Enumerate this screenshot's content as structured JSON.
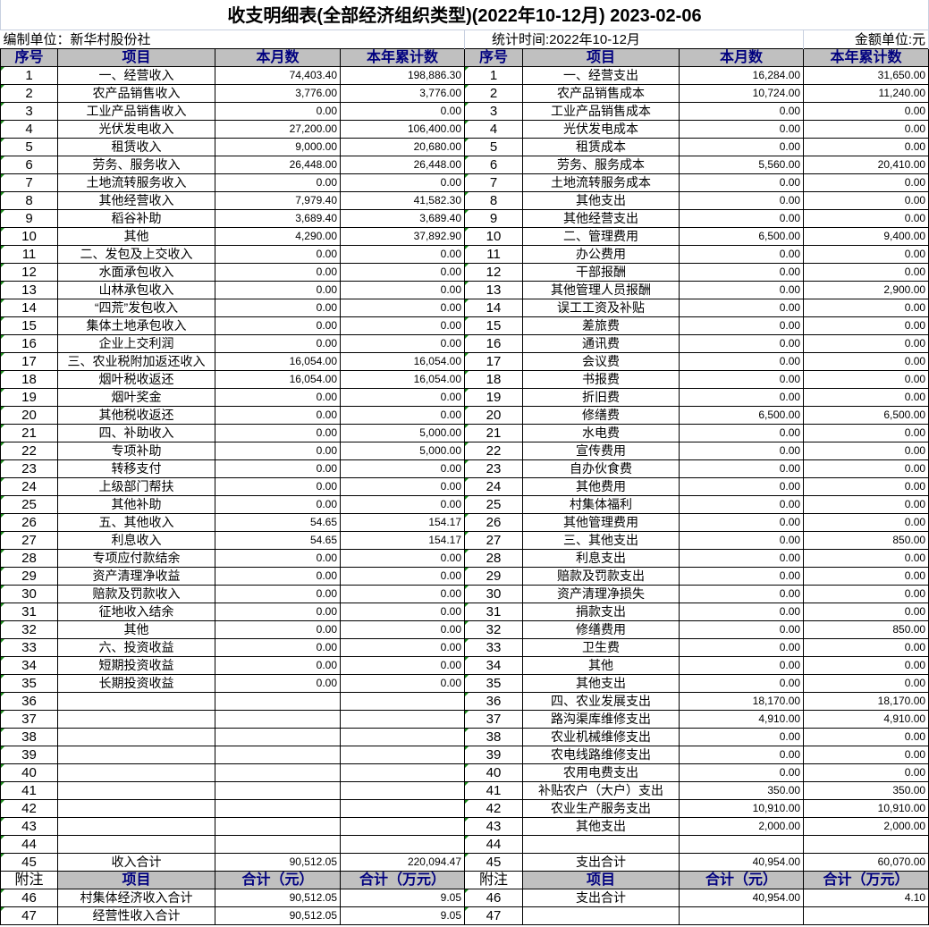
{
  "title": "收支明细表(全部经济组织类型)(2022年10-12月) 2023-02-06",
  "info": {
    "unit": "编制单位：新华村股份社",
    "period": "统计时间:2022年10-12月",
    "currency": "金额单位:元"
  },
  "header": {
    "seq": "序号",
    "item": "项目",
    "month": "本月数",
    "year": "本年累计数"
  },
  "left_rows": [
    [
      "1",
      "一、经营收入",
      "74,403.40",
      "198,886.30"
    ],
    [
      "2",
      "农产品销售收入",
      "3,776.00",
      "3,776.00"
    ],
    [
      "3",
      "工业产品销售收入",
      "0.00",
      "0.00"
    ],
    [
      "4",
      "光伏发电收入",
      "27,200.00",
      "106,400.00"
    ],
    [
      "5",
      "租赁收入",
      "9,000.00",
      "20,680.00"
    ],
    [
      "6",
      "劳务、服务收入",
      "26,448.00",
      "26,448.00"
    ],
    [
      "7",
      "土地流转服务收入",
      "0.00",
      "0.00"
    ],
    [
      "8",
      "其他经营收入",
      "7,979.40",
      "41,582.30"
    ],
    [
      "9",
      "稻谷补助",
      "3,689.40",
      "3,689.40"
    ],
    [
      "10",
      "其他",
      "4,290.00",
      "37,892.90"
    ],
    [
      "11",
      "二、发包及上交收入",
      "0.00",
      "0.00"
    ],
    [
      "12",
      "水面承包收入",
      "0.00",
      "0.00"
    ],
    [
      "13",
      "山林承包收入",
      "0.00",
      "0.00"
    ],
    [
      "14",
      "“四荒”发包收入",
      "0.00",
      "0.00"
    ],
    [
      "15",
      "集体土地承包收入",
      "0.00",
      "0.00"
    ],
    [
      "16",
      "企业上交利润",
      "0.00",
      "0.00"
    ],
    [
      "17",
      "三、农业税附加返还收入",
      "16,054.00",
      "16,054.00"
    ],
    [
      "18",
      "烟叶税收返还",
      "16,054.00",
      "16,054.00"
    ],
    [
      "19",
      "烟叶奖金",
      "0.00",
      "0.00"
    ],
    [
      "20",
      "其他税收返还",
      "0.00",
      "0.00"
    ],
    [
      "21",
      "四、补助收入",
      "0.00",
      "5,000.00"
    ],
    [
      "22",
      "专项补助",
      "0.00",
      "5,000.00"
    ],
    [
      "23",
      "转移支付",
      "0.00",
      "0.00"
    ],
    [
      "24",
      "上级部门帮扶",
      "0.00",
      "0.00"
    ],
    [
      "25",
      "其他补助",
      "0.00",
      "0.00"
    ],
    [
      "26",
      "五、其他收入",
      "54.65",
      "154.17"
    ],
    [
      "27",
      "利息收入",
      "54.65",
      "154.17"
    ],
    [
      "28",
      "专项应付款结余",
      "0.00",
      "0.00"
    ],
    [
      "29",
      "资产清理净收益",
      "0.00",
      "0.00"
    ],
    [
      "30",
      "赔款及罚款收入",
      "0.00",
      "0.00"
    ],
    [
      "31",
      "征地收入结余",
      "0.00",
      "0.00"
    ],
    [
      "32",
      "其他",
      "0.00",
      "0.00"
    ],
    [
      "33",
      "六、投资收益",
      "0.00",
      "0.00"
    ],
    [
      "34",
      "短期投资收益",
      "0.00",
      "0.00"
    ],
    [
      "35",
      "长期投资收益",
      "0.00",
      "0.00"
    ],
    [
      "36",
      "",
      "",
      ""
    ],
    [
      "37",
      "",
      "",
      ""
    ],
    [
      "38",
      "",
      "",
      ""
    ],
    [
      "39",
      "",
      "",
      ""
    ],
    [
      "40",
      "",
      "",
      ""
    ],
    [
      "41",
      "",
      "",
      ""
    ],
    [
      "42",
      "",
      "",
      ""
    ],
    [
      "43",
      "",
      "",
      ""
    ],
    [
      "44",
      "",
      "",
      ""
    ],
    [
      "45",
      "收入合计",
      "90,512.05",
      "220,094.47"
    ]
  ],
  "right_rows": [
    [
      "1",
      "一、经营支出",
      "16,284.00",
      "31,650.00"
    ],
    [
      "2",
      "农产品销售成本",
      "10,724.00",
      "11,240.00"
    ],
    [
      "3",
      "工业产品销售成本",
      "0.00",
      "0.00"
    ],
    [
      "4",
      "光伏发电成本",
      "0.00",
      "0.00"
    ],
    [
      "5",
      "租赁成本",
      "0.00",
      "0.00"
    ],
    [
      "6",
      "劳务、服务成本",
      "5,560.00",
      "20,410.00"
    ],
    [
      "7",
      "土地流转服务成本",
      "0.00",
      "0.00"
    ],
    [
      "8",
      "其他支出",
      "0.00",
      "0.00"
    ],
    [
      "9",
      "其他经营支出",
      "0.00",
      "0.00"
    ],
    [
      "10",
      "二、管理费用",
      "6,500.00",
      "9,400.00"
    ],
    [
      "11",
      "办公费用",
      "0.00",
      "0.00"
    ],
    [
      "12",
      "干部报酬",
      "0.00",
      "0.00"
    ],
    [
      "13",
      "其他管理人员报酬",
      "0.00",
      "2,900.00"
    ],
    [
      "14",
      "误工工资及补贴",
      "0.00",
      "0.00"
    ],
    [
      "15",
      "差旅费",
      "0.00",
      "0.00"
    ],
    [
      "16",
      "通讯费",
      "0.00",
      "0.00"
    ],
    [
      "17",
      "会议费",
      "0.00",
      "0.00"
    ],
    [
      "18",
      "书报费",
      "0.00",
      "0.00"
    ],
    [
      "19",
      "折旧费",
      "0.00",
      "0.00"
    ],
    [
      "20",
      "修缮费",
      "6,500.00",
      "6,500.00"
    ],
    [
      "21",
      "水电费",
      "0.00",
      "0.00"
    ],
    [
      "22",
      "宣传费用",
      "0.00",
      "0.00"
    ],
    [
      "23",
      "自办伙食费",
      "0.00",
      "0.00"
    ],
    [
      "24",
      "其他费用",
      "0.00",
      "0.00"
    ],
    [
      "25",
      "村集体福利",
      "0.00",
      "0.00"
    ],
    [
      "26",
      "其他管理费用",
      "0.00",
      "0.00"
    ],
    [
      "27",
      "三、其他支出",
      "0.00",
      "850.00"
    ],
    [
      "28",
      "利息支出",
      "0.00",
      "0.00"
    ],
    [
      "29",
      "赔款及罚款支出",
      "0.00",
      "0.00"
    ],
    [
      "30",
      "资产清理净损失",
      "0.00",
      "0.00"
    ],
    [
      "31",
      "捐款支出",
      "0.00",
      "0.00"
    ],
    [
      "32",
      "修缮费用",
      "0.00",
      "850.00"
    ],
    [
      "33",
      "卫生费",
      "0.00",
      "0.00"
    ],
    [
      "34",
      "其他",
      "0.00",
      "0.00"
    ],
    [
      "35",
      "其他支出",
      "0.00",
      "0.00"
    ],
    [
      "36",
      "四、农业发展支出",
      "18,170.00",
      "18,170.00"
    ],
    [
      "37",
      "路沟渠库维修支出",
      "4,910.00",
      "4,910.00"
    ],
    [
      "38",
      "农业机械维修支出",
      "0.00",
      "0.00"
    ],
    [
      "39",
      "农电线路维修支出",
      "0.00",
      "0.00"
    ],
    [
      "40",
      "农用电费支出",
      "0.00",
      "0.00"
    ],
    [
      "41",
      "补贴农户（大户）支出",
      "350.00",
      "350.00"
    ],
    [
      "42",
      "农业生产服务支出",
      "10,910.00",
      "10,910.00"
    ],
    [
      "43",
      "其他支出",
      "2,000.00",
      "2,000.00"
    ],
    [
      "44",
      "",
      "",
      ""
    ],
    [
      "45",
      "支出合计",
      "40,954.00",
      "60,070.00"
    ]
  ],
  "note_header": {
    "seq": "附注",
    "item": "项目",
    "yuan": "合计（元）",
    "wan": "合计（万元）"
  },
  "note_left": [
    [
      "46",
      "村集体经济收入合计",
      "90,512.05",
      "9.05"
    ],
    [
      "47",
      "经营性收入合计",
      "90,512.05",
      "9.05"
    ]
  ],
  "note_right": [
    [
      "46",
      "支出合计",
      "40,954.00",
      "4.10"
    ],
    [
      "47",
      "",
      "",
      ""
    ]
  ]
}
